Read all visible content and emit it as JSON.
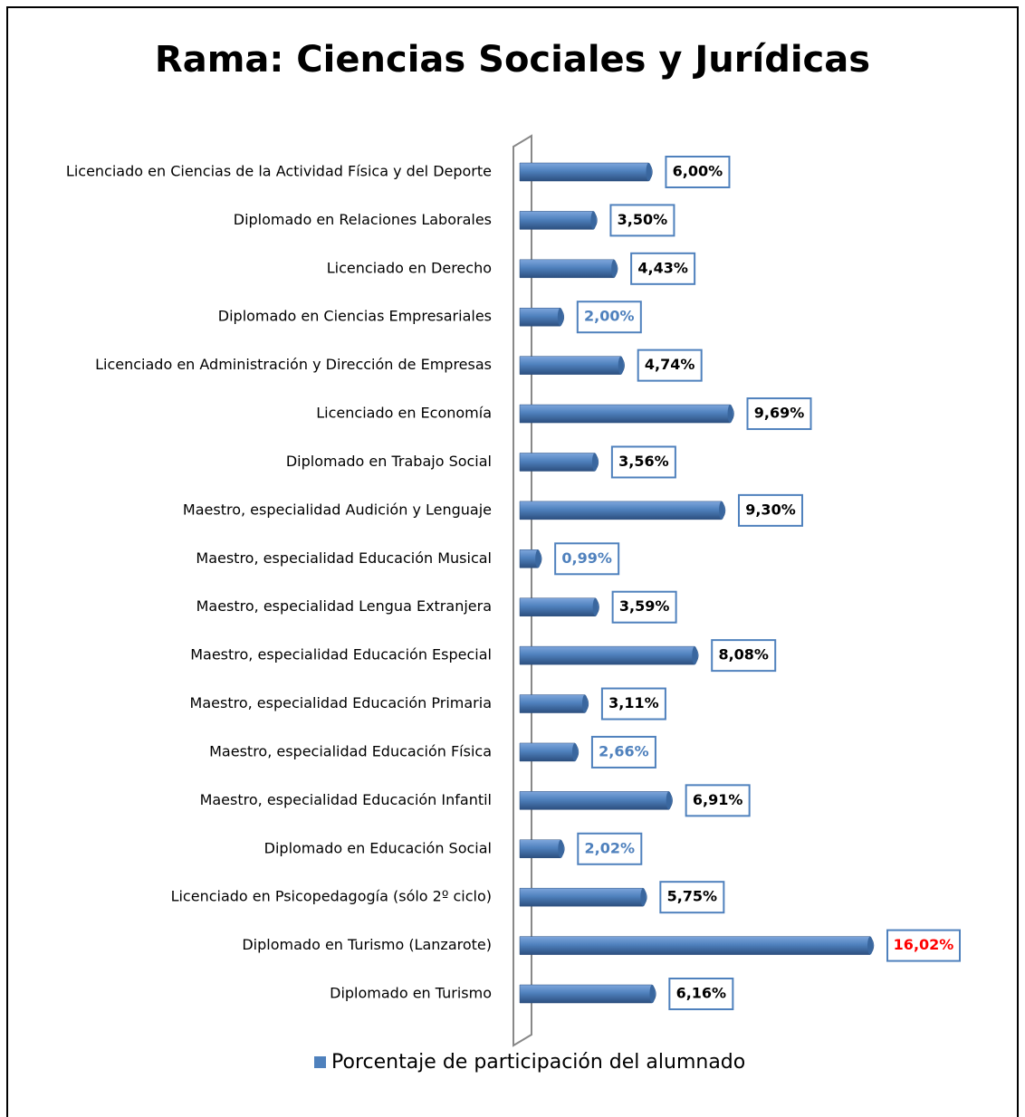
{
  "chart_data": {
    "type": "barh",
    "title": "Rama: Ciencias Sociales y Jurídicas",
    "categories": [
      "Licenciado en Ciencias de la Actividad Física y del Deporte",
      "Diplomado en Relaciones Laborales",
      "Licenciado en Derecho",
      "Diplomado en Ciencias Empresariales",
      "Licenciado en Administración y Dirección de Empresas",
      "Licenciado en Economía",
      "Diplomado en Trabajo Social",
      "Maestro, especialidad Audición y Lenguaje",
      "Maestro, especialidad Educación Musical",
      "Maestro, especialidad Lengua Extranjera",
      "Maestro, especialidad Educación Especial",
      "Maestro, especialidad Educación Primaria",
      "Maestro, especialidad Educación Física",
      "Maestro, especialidad Educación Infantil",
      "Diplomado en Educación Social",
      "Licenciado en Psicopedagogía (sólo 2º ciclo)",
      "Diplomado en Turismo (Lanzarote)",
      "Diplomado en Turismo"
    ],
    "series": [
      {
        "name": "Porcentaje de participación del alumnado",
        "color": "#4f81bd",
        "values": [
          6.0,
          3.5,
          4.43,
          2.0,
          4.74,
          9.69,
          3.56,
          9.3,
          0.99,
          3.59,
          8.08,
          3.11,
          2.66,
          6.91,
          2.02,
          5.75,
          16.02,
          6.16
        ],
        "value_labels": [
          "6,00%",
          "3,50%",
          "4,43%",
          "2,00%",
          "4,74%",
          "9,69%",
          "3,56%",
          "9,30%",
          "0,99%",
          "3,59%",
          "8,08%",
          "3,11%",
          "2,66%",
          "6,91%",
          "2,02%",
          "5,75%",
          "16,02%",
          "6,16%"
        ],
        "value_label_colors": [
          "#000000",
          "#000000",
          "#000000",
          "#4f81bd",
          "#000000",
          "#000000",
          "#000000",
          "#000000",
          "#4f81bd",
          "#000000",
          "#000000",
          "#000000",
          "#4f81bd",
          "#000000",
          "#4f81bd",
          "#000000",
          "#ff0000",
          "#000000"
        ]
      }
    ],
    "legend": "bottom"
  }
}
